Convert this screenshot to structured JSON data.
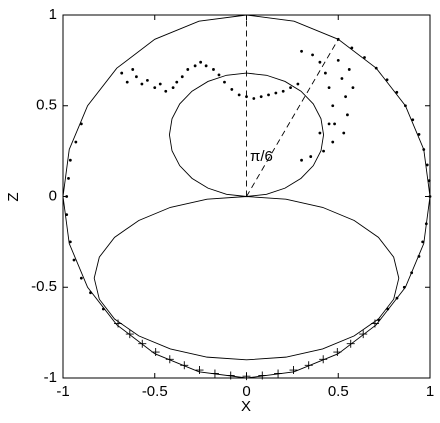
{
  "chart_data": {
    "type": "scatter",
    "xlabel": "X",
    "ylabel": "Z",
    "annotation": "π/6",
    "xlim": [
      -1,
      1
    ],
    "ylim": [
      -1,
      1
    ],
    "xticks": [
      -1,
      -0.5,
      0,
      0.5,
      1
    ],
    "yticks": [
      -1,
      -0.5,
      0,
      0.5,
      1
    ],
    "series": [
      {
        "style": "line",
        "color": "#000000",
        "x": [
          1,
          0.966,
          0.866,
          0.707,
          0.5,
          0.259,
          0,
          -0.259,
          -0.5,
          -0.707,
          -0.866,
          -0.966,
          -1,
          -0.966,
          -0.866,
          -0.707,
          -0.5,
          -0.259,
          0,
          0.259,
          0.5,
          0.707,
          0.866,
          0.966,
          1
        ],
        "y": [
          0,
          0.259,
          0.5,
          0.707,
          0.866,
          0.966,
          1,
          0.966,
          0.866,
          0.707,
          0.5,
          0.259,
          0,
          -0.259,
          -0.5,
          -0.707,
          -0.866,
          -0.966,
          -1,
          -0.966,
          -0.866,
          -0.707,
          -0.5,
          -0.259,
          0
        ]
      },
      {
        "style": "line",
        "color": "#000000",
        "x": [
          0,
          0.109,
          0.21,
          0.297,
          0.364,
          0.406,
          0.42,
          0.406,
          0.364,
          0.297,
          0.21,
          0.109,
          0,
          -0.109,
          -0.21,
          -0.297,
          -0.364,
          -0.406,
          -0.42,
          -0.406,
          -0.364,
          -0.297,
          -0.21,
          -0.109,
          0
        ],
        "y": [
          0,
          0.012,
          0.046,
          0.1,
          0.17,
          0.252,
          0.34,
          0.428,
          0.51,
          0.58,
          0.634,
          0.668,
          0.68,
          0.668,
          0.634,
          0.58,
          0.51,
          0.428,
          0.34,
          0.252,
          0.17,
          0.1,
          0.046,
          0.012,
          0
        ]
      },
      {
        "style": "line",
        "color": "#000000",
        "x": [
          0,
          0.215,
          0.415,
          0.587,
          0.719,
          0.802,
          0.83,
          0.802,
          0.719,
          0.587,
          0.415,
          0.215,
          0,
          -0.215,
          -0.415,
          -0.587,
          -0.719,
          -0.802,
          -0.83,
          -0.802,
          -0.719,
          -0.587,
          -0.415,
          -0.215,
          0
        ],
        "y": [
          0,
          -0.015,
          -0.06,
          -0.132,
          -0.225,
          -0.334,
          -0.45,
          -0.566,
          -0.675,
          -0.768,
          -0.84,
          -0.885,
          -0.9,
          -0.885,
          -0.84,
          -0.768,
          -0.675,
          -0.566,
          -0.45,
          -0.334,
          -0.225,
          -0.132,
          -0.06,
          -0.015,
          0
        ]
      },
      {
        "style": "dashed",
        "color": "#000000",
        "x": [
          0,
          0
        ],
        "y": [
          0,
          1
        ]
      },
      {
        "style": "dashed",
        "color": "#000000",
        "x": [
          0,
          0.5
        ],
        "y": [
          0,
          0.866
        ]
      },
      {
        "style": "dots",
        "color": "#000000",
        "x": [
          0.5,
          0.574,
          0.643,
          0.707,
          0.766,
          0.819,
          0.866,
          0.906,
          0.94,
          0.966,
          0.985,
          0.996,
          1.0,
          -0.9,
          -0.93,
          -0.96,
          -0.97,
          -0.98,
          -0.98,
          -0.96,
          -0.94,
          -0.9,
          -0.85,
          -0.78,
          -0.68,
          -0.65,
          -0.62,
          -0.6,
          -0.57,
          -0.54,
          -0.5,
          -0.47,
          -0.44,
          -0.4,
          -0.38,
          -0.35,
          -0.32,
          -0.28,
          -0.25,
          -0.22,
          -0.18,
          -0.15,
          -0.12,
          -0.08,
          -0.04,
          0,
          0.04,
          0.08,
          0.12,
          0.16,
          0.2,
          0.24,
          0.28,
          0.3,
          0.36,
          0.4,
          0.43,
          0.45,
          0.47,
          0.48,
          0.47,
          0.42,
          0.35,
          0.5,
          0.52,
          0.54,
          0.55,
          0.53,
          0.45,
          0.4,
          0.3,
          0.56,
          0.58,
          0.98,
          0.96,
          0.94,
          0.9,
          0.86,
          0.82,
          0.77,
          0.72
        ],
        "y": [
          0.866,
          0.819,
          0.766,
          0.707,
          0.643,
          0.574,
          0.5,
          0.423,
          0.342,
          0.259,
          0.174,
          0.087,
          0,
          0.4,
          0.3,
          0.2,
          0.1,
          0,
          -0.1,
          -0.25,
          -0.35,
          -0.45,
          -0.53,
          -0.62,
          0.68,
          0.63,
          0.7,
          0.66,
          0.62,
          0.64,
          0.6,
          0.62,
          0.58,
          0.6,
          0.63,
          0.66,
          0.7,
          0.72,
          0.74,
          0.72,
          0.7,
          0.67,
          0.63,
          0.59,
          0.56,
          0.55,
          0.54,
          0.55,
          0.56,
          0.57,
          0.58,
          0.6,
          0.62,
          0.8,
          0.78,
          0.74,
          0.68,
          0.6,
          0.5,
          0.4,
          0.3,
          0.25,
          0.22,
          0.75,
          0.65,
          0.55,
          0.45,
          0.35,
          0.4,
          0.35,
          0.2,
          0.7,
          0.6,
          -0.15,
          -0.25,
          -0.33,
          -0.42,
          -0.5,
          -0.56,
          -0.62,
          -0.68
        ]
      },
      {
        "style": "plus",
        "color": "#000000",
        "x": [
          0.7,
          0.636,
          0.568,
          0.495,
          0.418,
          0.339,
          0.256,
          0.172,
          0.086,
          0,
          -0.086,
          -0.172,
          -0.256,
          -0.339,
          -0.418,
          -0.495,
          -0.568,
          -0.636,
          -0.7
        ],
        "y": [
          -0.7,
          -0.758,
          -0.811,
          -0.857,
          -0.897,
          -0.93,
          -0.956,
          -0.975,
          -0.986,
          -0.99,
          -0.986,
          -0.975,
          -0.956,
          -0.93,
          -0.897,
          -0.857,
          -0.811,
          -0.758,
          -0.7
        ]
      }
    ]
  }
}
